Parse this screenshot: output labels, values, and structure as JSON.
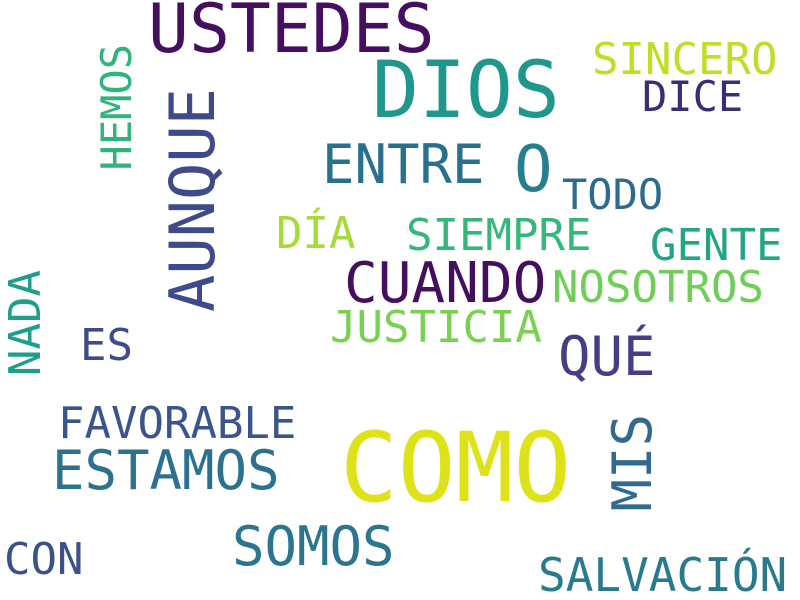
{
  "words": {
    "ustedes": {
      "text": "USTEDES",
      "color": "#440f5e"
    },
    "dios": {
      "text": "DIOS",
      "color": "#20978b"
    },
    "sincero": {
      "text": "SINCERO",
      "color": "#bddf26"
    },
    "dice": {
      "text": "DICE",
      "color": "#3b2d73"
    },
    "hemos": {
      "text": "HEMOS",
      "color": "#2fb47c"
    },
    "aunque": {
      "text": "AUNQUE",
      "color": "#3e4a89"
    },
    "entre": {
      "text": "ENTRE",
      "color": "#2a6f8e"
    },
    "o": {
      "text": "O",
      "color": "#277f8e"
    },
    "todo": {
      "text": "TODO",
      "color": "#2d6b8e"
    },
    "dia": {
      "text": "DÍA",
      "color": "#a5db36"
    },
    "siempre": {
      "text": "SIEMPRE",
      "color": "#35b779"
    },
    "gente": {
      "text": "GENTE",
      "color": "#21a685"
    },
    "cuando": {
      "text": "CUANDO",
      "color": "#44105e"
    },
    "nosotros": {
      "text": "NOSOTROS",
      "color": "#6ece58"
    },
    "nada": {
      "text": "NADA",
      "color": "#1f9e89"
    },
    "justicia": {
      "text": "JUSTICIA",
      "color": "#7ad151"
    },
    "es": {
      "text": "ES",
      "color": "#3e4c8a"
    },
    "que": {
      "text": "QUÉ",
      "color": "#433e85"
    },
    "favorable": {
      "text": "FAVORABLE",
      "color": "#3a548c"
    },
    "como": {
      "text": "COMO",
      "color": "#dde318"
    },
    "mis": {
      "text": "MIS",
      "color": "#306a8e"
    },
    "estamos": {
      "text": "ESTAMOS",
      "color": "#2c728e"
    },
    "somos": {
      "text": "SOMOS",
      "color": "#2b758e"
    },
    "con": {
      "text": "CON",
      "color": "#3b5189"
    },
    "salvacion": {
      "text": "SALVACIÓN",
      "color": "#2a7a8e"
    }
  }
}
